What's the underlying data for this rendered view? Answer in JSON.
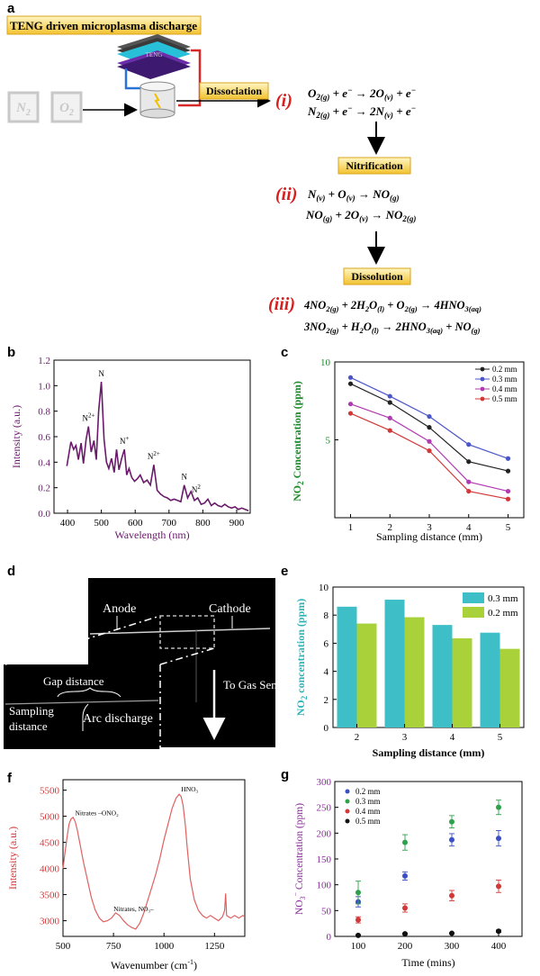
{
  "panel_a": {
    "letter": "a",
    "header": "TENG driven microplasma discharge",
    "device_label": "TENG",
    "gas1": "N",
    "gas1_sub": "2",
    "gas2": "O",
    "gas2_sub": "2",
    "stage1": "Dissociation",
    "stage2": "Nitrification",
    "stage3": "Dissolution",
    "roman1": "(i)",
    "roman2": "(ii)",
    "roman3": "(iii)"
  },
  "chart_data": [
    {
      "panel": "b",
      "type": "line",
      "xlabel": "Wavelength (nm)",
      "ylabel": "Intensity (a.u.)",
      "xlim": [
        360,
        940
      ],
      "ylim": [
        0,
        1.2
      ],
      "xticks": [
        400,
        500,
        600,
        700,
        800,
        900
      ],
      "yticks": [
        0.0,
        0.2,
        0.4,
        0.6,
        0.8,
        1.0,
        1.2
      ],
      "color": "#6a1a6a",
      "x": [
        398,
        410,
        418,
        425,
        432,
        440,
        447,
        455,
        462,
        470,
        478,
        485,
        492,
        500,
        508,
        515,
        522,
        530,
        538,
        545,
        552,
        560,
        568,
        575,
        582,
        590,
        598,
        606,
        615,
        625,
        635,
        645,
        655,
        665,
        675,
        685,
        695,
        705,
        715,
        725,
        735,
        745,
        755,
        765,
        775,
        785,
        795,
        805,
        815,
        825,
        835,
        845,
        855,
        865,
        875,
        885,
        895,
        905,
        915,
        925,
        935
      ],
      "y": [
        0.37,
        0.56,
        0.5,
        0.53,
        0.42,
        0.55,
        0.39,
        0.58,
        0.68,
        0.48,
        0.57,
        0.42,
        0.8,
        1.03,
        0.58,
        0.4,
        0.35,
        0.43,
        0.32,
        0.5,
        0.34,
        0.43,
        0.5,
        0.3,
        0.35,
        0.28,
        0.25,
        0.27,
        0.3,
        0.24,
        0.26,
        0.22,
        0.38,
        0.18,
        0.15,
        0.13,
        0.12,
        0.1,
        0.11,
        0.1,
        0.09,
        0.22,
        0.12,
        0.17,
        0.1,
        0.12,
        0.07,
        0.08,
        0.11,
        0.06,
        0.08,
        0.06,
        0.05,
        0.07,
        0.05,
        0.04,
        0.05,
        0.03,
        0.04,
        0.03,
        0.02
      ],
      "annotations": [
        {
          "text": "N",
          "sup": "",
          "x": 500,
          "y": 1.06
        },
        {
          "text": "N",
          "sup": "2+",
          "x": 462,
          "y": 0.71
        },
        {
          "text": "N",
          "sup": "+",
          "x": 568,
          "y": 0.53
        },
        {
          "text": "N",
          "sup": "2+",
          "x": 655,
          "y": 0.41
        },
        {
          "text": "N",
          "sup": "",
          "x": 745,
          "y": 0.25
        },
        {
          "text": "N",
          "sup": "2",
          "x": 780,
          "y": 0.15
        }
      ]
    },
    {
      "panel": "c",
      "type": "line",
      "xlabel": "Sampling distance (mm)",
      "ylabel_prefix": "NO",
      "ylabel_sub": "2",
      "ylabel_suffix": " Concentration (ppm)",
      "xlim": [
        0.6,
        5.4
      ],
      "ylim": [
        0,
        10
      ],
      "xticks": [
        1,
        2,
        3,
        4,
        5
      ],
      "yticks": [
        5,
        10
      ],
      "legend_position": "top-right",
      "categories": [
        1,
        2,
        3,
        4,
        5
      ],
      "series": [
        {
          "name": "0.2 mm",
          "color": "#222222",
          "values": [
            8.6,
            7.4,
            5.8,
            3.6,
            3.0
          ]
        },
        {
          "name": "0.3 mm",
          "color": "#4a55c8",
          "values": [
            9.0,
            7.8,
            6.5,
            4.7,
            3.8
          ]
        },
        {
          "name": "0.4 mm",
          "color": "#b03bb0",
          "values": [
            7.3,
            6.4,
            4.9,
            2.3,
            1.7
          ]
        },
        {
          "name": "0.5 mm",
          "color": "#d33838",
          "values": [
            6.7,
            5.6,
            4.3,
            1.7,
            1.2
          ]
        }
      ]
    },
    {
      "panel": "e",
      "type": "bar",
      "xlabel": "Sampling distance (mm)",
      "ylabel_prefix": "NO",
      "ylabel_sub": "2",
      "ylabel_suffix": " concentration (ppm)",
      "ylim": [
        0,
        10
      ],
      "yticks": [
        0,
        2,
        4,
        6,
        8,
        10
      ],
      "legend_position": "top-right",
      "categories": [
        "2",
        "3",
        "4",
        "5"
      ],
      "series": [
        {
          "name": "0.3 mm",
          "color": "#3ebfc7",
          "values": [
            8.6,
            9.1,
            7.3,
            6.75
          ]
        },
        {
          "name": "0.2 mm",
          "color": "#a8d13a",
          "values": [
            7.4,
            7.85,
            6.35,
            5.6
          ]
        }
      ]
    },
    {
      "panel": "f",
      "type": "line",
      "xlabel": "Wavenumber (cm",
      "xlabel_sup": "-1",
      "xlabel_end": ")",
      "ylabel": "Intensity (a.u.)",
      "xlim": [
        500,
        1400
      ],
      "ylim": [
        2700,
        5700
      ],
      "xticks": [
        500,
        750,
        1000,
        1250
      ],
      "yticks": [
        3000,
        3500,
        4000,
        4500,
        5000,
        5500
      ],
      "color": "#e06060",
      "x": [
        500,
        510,
        520,
        530,
        540,
        550,
        560,
        570,
        580,
        590,
        600,
        620,
        640,
        660,
        680,
        700,
        720,
        740,
        760,
        780,
        800,
        820,
        840,
        860,
        880,
        900,
        920,
        940,
        960,
        980,
        1000,
        1020,
        1040,
        1060,
        1075,
        1085,
        1095,
        1105,
        1115,
        1130,
        1150,
        1170,
        1190,
        1210,
        1230,
        1250,
        1270,
        1290,
        1300,
        1305,
        1310,
        1330,
        1350,
        1370,
        1390,
        1400
      ],
      "y": [
        4000,
        4300,
        4600,
        4850,
        4950,
        4980,
        4900,
        4750,
        4550,
        4350,
        4150,
        3800,
        3450,
        3200,
        3050,
        2980,
        3000,
        3050,
        3150,
        3100,
        3000,
        2920,
        2870,
        2840,
        2950,
        3150,
        3400,
        3650,
        3900,
        4200,
        4550,
        4850,
        5150,
        5350,
        5420,
        5380,
        5200,
        4850,
        4400,
        3800,
        3400,
        3200,
        3100,
        3050,
        3100,
        3050,
        3000,
        3080,
        3200,
        3520,
        3100,
        3050,
        3100,
        3050,
        3100,
        3080
      ],
      "annotations": [
        {
          "text": "Nitrates –ONO₂",
          "x": 560,
          "y": 5020
        },
        {
          "text": "HNO₃",
          "x": 1085,
          "y": 5480
        },
        {
          "text": "Nitrates, NO₃–",
          "x": 750,
          "y": 3180
        }
      ]
    },
    {
      "panel": "g",
      "type": "scatter",
      "xlabel": "Time (mins)",
      "ylabel_prefix": "NO",
      "ylabel_sub": "3",
      "ylabel_sup": "−",
      "ylabel_suffix": " Concentration (ppm)",
      "xlim": [
        50,
        450
      ],
      "ylim": [
        0,
        300
      ],
      "xticks": [
        100,
        200,
        300,
        400
      ],
      "yticks": [
        0,
        50,
        100,
        150,
        200,
        250,
        300
      ],
      "legend_position": "top-left",
      "x": [
        100,
        200,
        300,
        400
      ],
      "series": [
        {
          "name": "0.2 mm",
          "color": "#3a4fc4",
          "values": [
            67,
            117,
            187,
            190
          ],
          "errors": [
            10,
            8,
            12,
            15
          ]
        },
        {
          "name": "0.3 mm",
          "color": "#2ea24a",
          "values": [
            85,
            182,
            222,
            250
          ],
          "errors": [
            22,
            15,
            12,
            14
          ]
        },
        {
          "name": "0.4 mm",
          "color": "#d33838",
          "values": [
            32,
            55,
            79,
            97
          ],
          "errors": [
            6,
            8,
            10,
            12
          ]
        },
        {
          "name": "0.5 mm",
          "color": "#111111",
          "values": [
            2,
            5,
            6,
            10
          ],
          "errors": [
            1,
            1,
            1,
            2
          ]
        }
      ]
    }
  ],
  "panel_d": {
    "letter": "d",
    "anode": "Anode",
    "cathode": "Cathode",
    "to_gas_sensor": "To Gas Sensor",
    "gap_distance": "Gap distance",
    "arc_discharge": "Arc discharge",
    "sampling_distance_1": "Sampling",
    "sampling_distance_2": "distance"
  },
  "letters": {
    "b": "b",
    "c": "c",
    "e": "e",
    "f": "f",
    "g": "g"
  }
}
